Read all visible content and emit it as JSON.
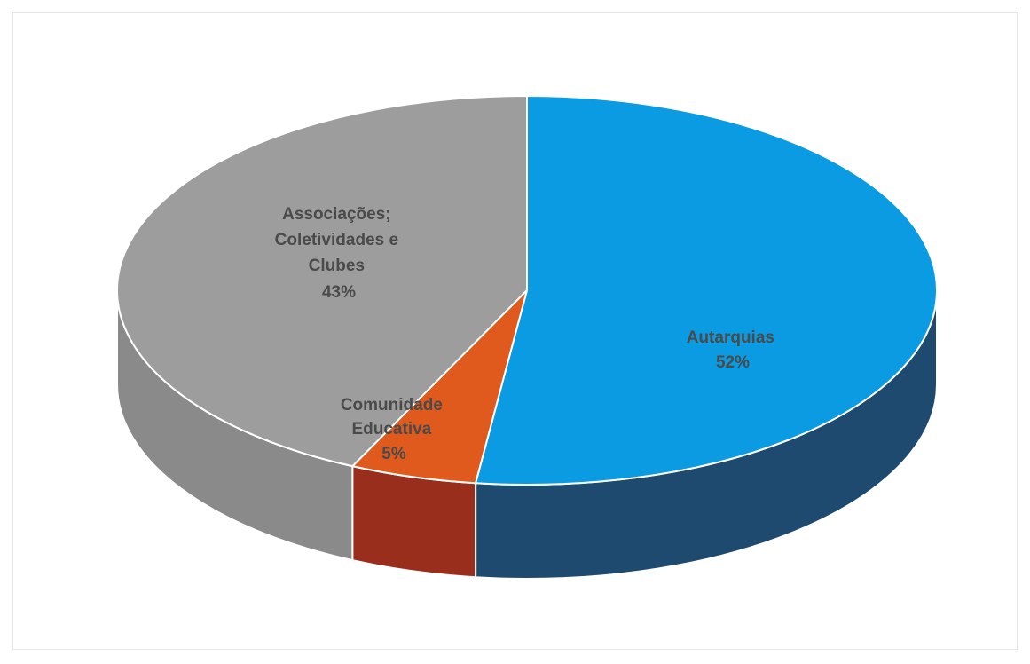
{
  "chart_data": {
    "type": "pie",
    "style": "3d",
    "slices": [
      {
        "label": "Autarquias",
        "value": 52,
        "value_label": "52%",
        "color": "#0a9be2",
        "side_color": "#1f4a70"
      },
      {
        "label": "Comunidade Educativa",
        "value": 5,
        "value_label": "5%",
        "color": "#e05a1e",
        "side_color": "#9a2e1c"
      },
      {
        "label": "Associações; Coletividades e Clubes",
        "value": 43,
        "value_label": "43%",
        "color": "#9d9d9d",
        "side_color": "#8a8a8a"
      }
    ],
    "labels": {
      "autarquias": [
        "Autarquias",
        "52%"
      ],
      "comunidade": [
        "Comunidade",
        "Educativa",
        "5%"
      ],
      "associacoes": [
        "Associações;",
        "Coletividades e",
        "Clubes",
        "43%"
      ]
    },
    "legend": "none"
  }
}
